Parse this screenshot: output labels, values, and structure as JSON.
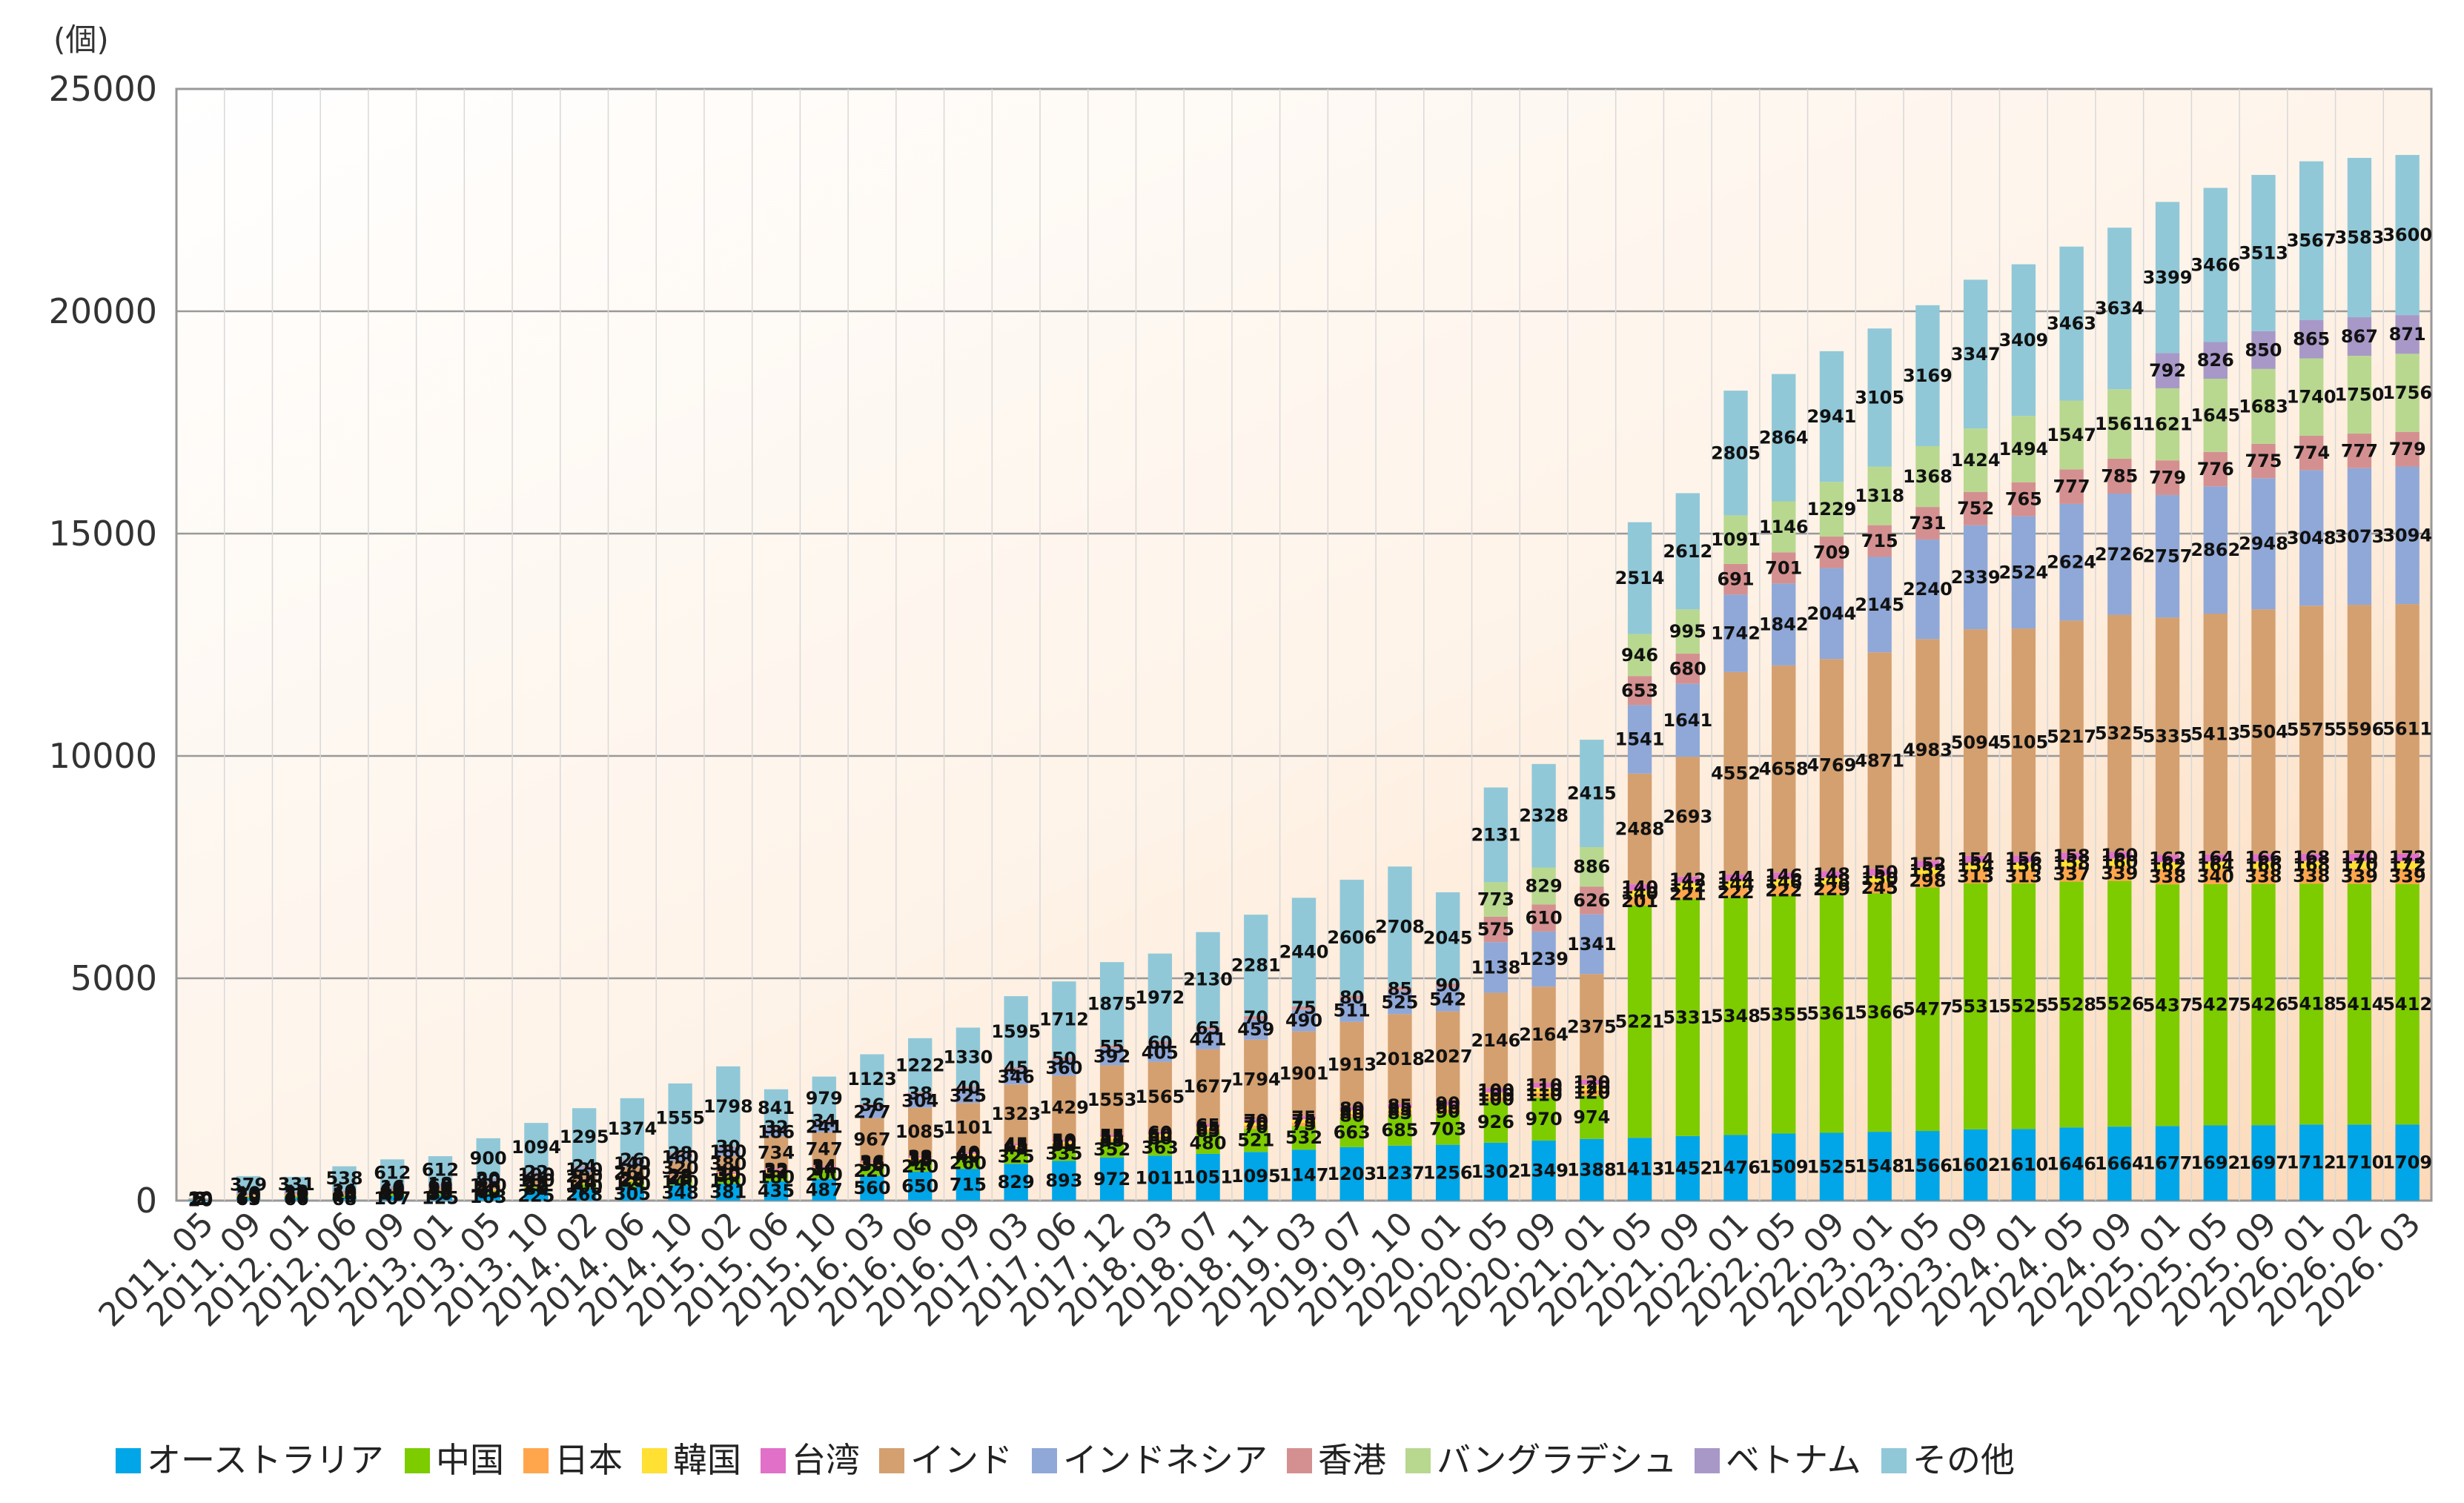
{
  "chart_data": {
    "type": "bar",
    "stacked": true,
    "title": "",
    "ylabel": "(個)",
    "xlabel": "",
    "ylim": [
      0,
      25000
    ],
    "yticks": [
      0,
      5000,
      10000,
      15000,
      20000,
      25000
    ],
    "grid": true,
    "legend_position": "bottom",
    "categories": [
      "2011. 05",
      "2011. 09",
      "2012. 01",
      "2012. 06",
      "2012. 09",
      "2013. 01",
      "2013. 05",
      "2013. 10",
      "2014. 02",
      "2014. 06",
      "2014. 10",
      "2015. 02",
      "2015. 06",
      "2015. 10",
      "2016. 03",
      "2016. 06",
      "2016. 09",
      "2017. 03",
      "2017. 06",
      "2017. 12",
      "2018. 03",
      "2018. 07",
      "2018. 11",
      "2019. 03",
      "2019. 07",
      "2019. 10",
      "2020. 01",
      "2020. 05",
      "2020. 09",
      "2021. 01",
      "2021. 05",
      "2021. 09",
      "2022. 01",
      "2022. 05",
      "2022. 09",
      "2023. 01",
      "2023. 05",
      "2023. 09",
      "2024. 01",
      "2024. 05",
      "2024. 09",
      "2025. 01",
      "2025. 05",
      "2025. 09",
      "2026. 01",
      "2026. 02",
      "2026. 03"
    ],
    "series": [
      {
        "name": "オーストラリア",
        "color": "#00a6e8",
        "values": [
          20,
          63,
          66,
          68,
          107,
          125,
          163,
          225,
          268,
          305,
          348,
          381,
          435,
          487,
          560,
          650,
          715,
          829,
          893,
          972,
          1011,
          1051,
          1095,
          1147,
          1203,
          1237,
          1256,
          1302,
          1349,
          1388,
          1413,
          1452,
          1476,
          1509,
          1525,
          1548,
          1566,
          1602,
          1610,
          1646,
          1664,
          1677,
          1692,
          1697,
          1712,
          1710,
          1709
        ]
      },
      {
        "name": "中国",
        "color": "#7dcc00",
        "values": [
          10,
          30,
          35,
          40,
          45,
          50,
          60,
          80,
          100,
          120,
          140,
          160,
          180,
          200,
          220,
          240,
          260,
          325,
          335,
          352,
          363,
          480,
          521,
          532,
          663,
          685,
          703,
          926,
          970,
          974,
          5221,
          5331,
          5348,
          5355,
          5361,
          5366,
          5477,
          5531,
          5525,
          5528,
          5526,
          5437,
          5427,
          5426,
          5418,
          5414,
          5412
        ]
      },
      {
        "name": "日本",
        "color": "#ffa64d",
        "values": [
          2,
          10,
          12,
          14,
          16,
          18,
          20,
          22,
          24,
          26,
          28,
          30,
          32,
          34,
          36,
          38,
          40,
          45,
          50,
          55,
          60,
          65,
          70,
          75,
          80,
          85,
          90,
          100,
          110,
          120,
          201,
          221,
          222,
          222,
          229,
          245,
          298,
          313,
          313,
          337,
          339,
          338,
          340,
          338,
          338,
          339,
          339
        ]
      },
      {
        "name": "韓国",
        "color": "#ffe033",
        "values": [
          2,
          10,
          12,
          14,
          16,
          18,
          20,
          22,
          24,
          26,
          28,
          30,
          32,
          34,
          36,
          38,
          40,
          45,
          50,
          55,
          60,
          65,
          70,
          75,
          80,
          85,
          90,
          100,
          110,
          120,
          140,
          142,
          144,
          146,
          148,
          150,
          152,
          154,
          156,
          158,
          160,
          162,
          164,
          166,
          168,
          170,
          172
        ]
      },
      {
        "name": "台湾",
        "color": "#e070c8",
        "values": [
          2,
          10,
          12,
          14,
          16,
          18,
          20,
          22,
          24,
          26,
          28,
          30,
          32,
          34,
          36,
          38,
          40,
          45,
          50,
          55,
          60,
          65,
          70,
          75,
          80,
          85,
          90,
          100,
          110,
          120,
          140,
          142,
          144,
          146,
          148,
          150,
          152,
          154,
          156,
          158,
          160,
          162,
          164,
          166,
          168,
          170,
          172
        ]
      },
      {
        "name": "インド",
        "color": "#d4a070",
        "values": [
          5,
          20,
          30,
          40,
          60,
          80,
          120,
          160,
          200,
          260,
          320,
          380,
          734,
          747,
          967,
          1085,
          1101,
          1323,
          1429,
          1553,
          1565,
          1677,
          1794,
          1901,
          1913,
          2018,
          2027,
          2146,
          2164,
          2375,
          2488,
          2693,
          4552,
          4658,
          4769,
          4871,
          4983,
          5094,
          5105,
          5217,
          5325,
          5335,
          5413,
          5504,
          5575,
          5596,
          5611
        ]
      },
      {
        "name": "インドネシア",
        "color": "#8fa8d8",
        "values": [
          3,
          20,
          25,
          30,
          40,
          60,
          80,
          100,
          120,
          140,
          160,
          180,
          186,
          241,
          277,
          304,
          325,
          346,
          360,
          392,
          405,
          441,
          459,
          490,
          511,
          525,
          542,
          1138,
          1239,
          1341,
          1541,
          1641,
          1742,
          1842,
          2044,
          2145,
          2240,
          2339,
          2524,
          2624,
          2726,
          2757,
          2862,
          2948,
          3048,
          3073,
          3094
        ]
      },
      {
        "name": "香港",
        "color": "#d49090",
        "values": [
          2,
          10,
          12,
          14,
          16,
          18,
          20,
          22,
          24,
          26,
          28,
          30,
          32,
          34,
          36,
          38,
          40,
          45,
          50,
          55,
          60,
          65,
          70,
          75,
          80,
          85,
          90,
          575,
          610,
          626,
          653,
          680,
          691,
          701,
          709,
          715,
          731,
          752,
          765,
          777,
          785,
          779,
          776,
          775,
          774,
          777,
          779
        ]
      },
      {
        "name": "バングラデシュ",
        "color": "#b8d890",
        "values": [
          0,
          0,
          0,
          0,
          0,
          0,
          0,
          0,
          0,
          0,
          0,
          0,
          0,
          0,
          0,
          0,
          0,
          0,
          0,
          0,
          0,
          0,
          0,
          0,
          0,
          0,
          0,
          773,
          829,
          886,
          946,
          995,
          1091,
          1146,
          1229,
          1318,
          1368,
          1424,
          1494,
          1547,
          1561,
          1621,
          1645,
          1683,
          1740,
          1750,
          1756
        ]
      },
      {
        "name": "ベトナム",
        "color": "#a898c8",
        "values": [
          0,
          0,
          0,
          0,
          0,
          0,
          0,
          0,
          0,
          0,
          0,
          0,
          0,
          0,
          0,
          0,
          0,
          0,
          0,
          0,
          0,
          0,
          0,
          0,
          0,
          0,
          0,
          0,
          0,
          0,
          0,
          0,
          0,
          0,
          0,
          0,
          0,
          0,
          0,
          0,
          0,
          792,
          826,
          850,
          865,
          867,
          871
        ]
      },
      {
        "name": "その他",
        "color": "#90c8d8",
        "values": [
          10,
          379,
          331,
          538,
          612,
          612,
          900,
          1094,
          1295,
          1374,
          1555,
          1798,
          841,
          979,
          1123,
          1222,
          1330,
          1595,
          1712,
          1875,
          1972,
          2130,
          2281,
          2440,
          2606,
          2708,
          2045,
          2131,
          2328,
          2415,
          2514,
          2612,
          2805,
          2864,
          2941,
          3105,
          3169,
          3347,
          3409,
          3463,
          3634,
          3399,
          3466,
          3513,
          3567,
          3583,
          3600
        ]
      }
    ]
  },
  "legend": {
    "items": [
      "オーストラリア",
      "中国",
      "日本",
      "韓国",
      "台湾",
      "インド",
      "インドネシア",
      "香港",
      "バングラデシュ",
      "ベトナム",
      "その他"
    ]
  }
}
